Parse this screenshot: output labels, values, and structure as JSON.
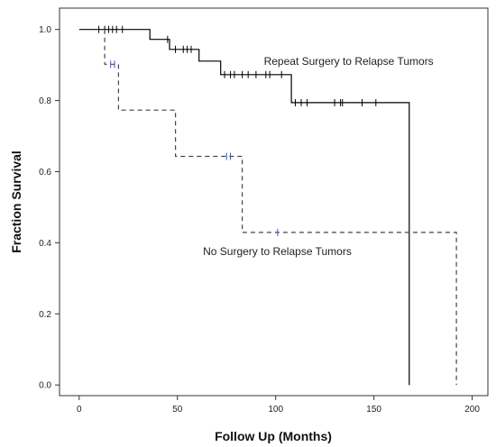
{
  "chart_data": {
    "type": "line",
    "subtype": "kaplan-meier step survival curves",
    "title": "",
    "xlabel": "Follow Up (Months)",
    "ylabel": "Fraction Survival",
    "xlim": [
      -10,
      208
    ],
    "ylim": [
      -0.03,
      1.06
    ],
    "xticks": [
      0,
      50,
      100,
      150,
      200
    ],
    "xtick_labels": [
      "0",
      "50",
      "100",
      "150",
      "200"
    ],
    "yticks": [
      0.0,
      0.2,
      0.4,
      0.6,
      0.8,
      1.0
    ],
    "ytick_labels": [
      "0.0",
      "0.2",
      "0.4",
      "0.6",
      "0.8",
      "1.0"
    ],
    "grid": false,
    "legend": "none",
    "series": [
      {
        "line_style": "solid",
        "color": "#000000",
        "censor_color": "#000000",
        "steps": [
          [
            0,
            1.0
          ],
          [
            36,
            1.0
          ],
          [
            36,
            0.972
          ],
          [
            46,
            0.972
          ],
          [
            46,
            0.944
          ],
          [
            61,
            0.944
          ],
          [
            61,
            0.911
          ],
          [
            72,
            0.911
          ],
          [
            72,
            0.873
          ],
          [
            108,
            0.873
          ],
          [
            108,
            0.794
          ],
          [
            168,
            0.794
          ],
          [
            168,
            0.0
          ]
        ],
        "censored": [
          [
            10,
            1.0
          ],
          [
            13,
            1.0
          ],
          [
            15,
            1.0
          ],
          [
            17,
            1.0
          ],
          [
            19,
            1.0
          ],
          [
            22,
            1.0
          ],
          [
            45,
            0.972
          ],
          [
            49,
            0.944
          ],
          [
            53,
            0.944
          ],
          [
            55,
            0.944
          ],
          [
            57,
            0.944
          ],
          [
            74,
            0.873
          ],
          [
            77,
            0.873
          ],
          [
            79,
            0.873
          ],
          [
            83,
            0.873
          ],
          [
            86,
            0.873
          ],
          [
            90,
            0.873
          ],
          [
            95,
            0.873
          ],
          [
            97,
            0.873
          ],
          [
            103,
            0.873
          ],
          [
            110,
            0.794
          ],
          [
            113,
            0.794
          ],
          [
            116,
            0.794
          ],
          [
            130,
            0.794
          ],
          [
            133,
            0.794
          ],
          [
            134,
            0.794
          ],
          [
            144,
            0.794
          ],
          [
            151,
            0.794
          ]
        ]
      },
      {
        "line_style": "dashed",
        "color": "#444444",
        "censor_color": "#3355cc",
        "steps": [
          [
            13,
            1.0
          ],
          [
            13,
            0.902
          ],
          [
            20,
            0.902
          ],
          [
            20,
            0.773
          ],
          [
            49,
            0.773
          ],
          [
            49,
            0.643
          ],
          [
            83,
            0.643
          ],
          [
            83,
            0.429
          ],
          [
            192,
            0.429
          ],
          [
            192,
            0.0
          ]
        ],
        "censored": [
          [
            16,
            0.902
          ],
          [
            18,
            0.902
          ],
          [
            75,
            0.643
          ],
          [
            77,
            0.643
          ],
          [
            101,
            0.429
          ]
        ]
      }
    ],
    "annotations": [
      {
        "text": "Repeat Surgery to Relapse Tumors",
        "x": 94,
        "y": 0.9
      },
      {
        "text": "No Surgery to Relapse Tumors",
        "x": 63,
        "y": 0.365
      }
    ]
  }
}
